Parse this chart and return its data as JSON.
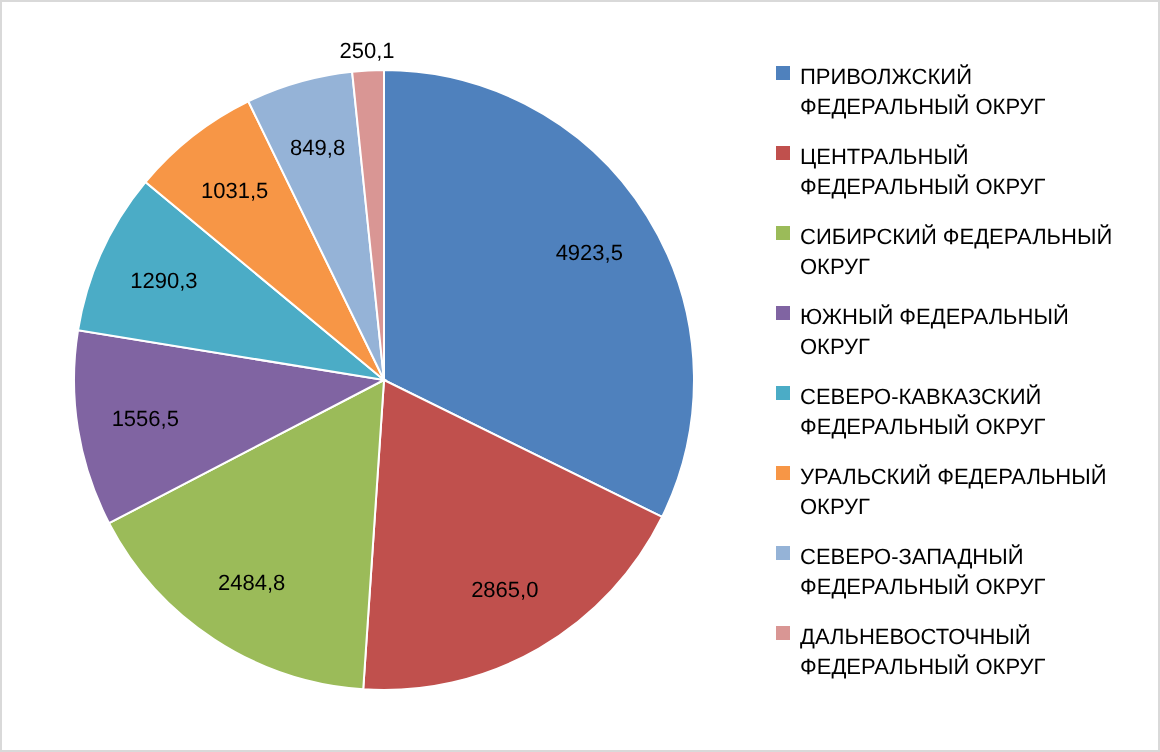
{
  "chart_data": {
    "type": "pie",
    "categories": [
      "ПРИВОЛЖСКИЙ ФЕДЕРАЛЬНЫЙ ОКРУГ",
      "ЦЕНТРАЛЬНЫЙ ФЕДЕРАЛЬНЫЙ ОКРУГ",
      "СИБИРСКИЙ ФЕДЕРАЛЬНЫЙ ОКРУГ",
      "ЮЖНЫЙ ФЕДЕРАЛЬНЫЙ ОКРУГ",
      "СЕВЕРО-КАВКАЗСКИЙ ФЕДЕРАЛЬНЫЙ ОКРУГ",
      "УРАЛЬСКИЙ ФЕДЕРАЛЬНЫЙ ОКРУГ",
      "СЕВЕРО-ЗАПАДНЫЙ ФЕДЕРАЛЬНЫЙ ОКРУГ",
      "ДАЛЬНЕВОСТОЧНЫЙ ФЕДЕРАЛЬНЫЙ ОКРУГ"
    ],
    "values": [
      4923.5,
      2865.0,
      2484.8,
      1556.5,
      1290.3,
      1031.5,
      849.8,
      250.1
    ],
    "value_labels": [
      "4923,5",
      "2865,0",
      "2484,8",
      "1556,5",
      "1290,3",
      "1031,5",
      "849,8",
      "250,1"
    ],
    "colors": [
      "#4f81bd",
      "#c0504d",
      "#9bbb59",
      "#8064a2",
      "#4bacc6",
      "#f79646",
      "#95b3d7",
      "#d99694"
    ],
    "legend": "right"
  }
}
